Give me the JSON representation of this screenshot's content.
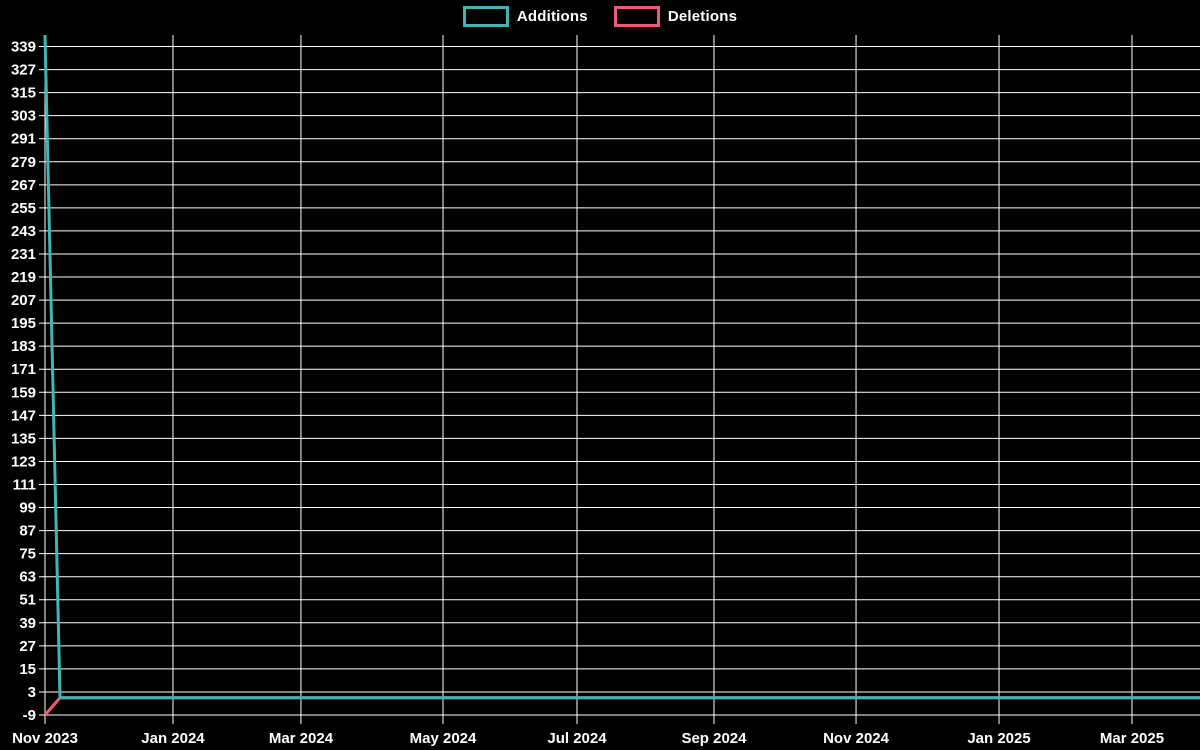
{
  "page": {
    "background": "#000000",
    "grid_color": "#ffffff",
    "text_color": "#ffffff"
  },
  "chart_data": {
    "type": "line",
    "title": "",
    "legend_position": "top-center",
    "grid": true,
    "series": [
      {
        "name": "Additions",
        "color": "#3fb6b6",
        "points": [
          {
            "x": 0.0,
            "y": 345
          },
          {
            "x": 0.013,
            "y": 0
          },
          {
            "x": 1.0,
            "y": 0
          }
        ]
      },
      {
        "name": "Deletions",
        "color": "#ef5b72",
        "points": [
          {
            "x": 0.0,
            "y": -9
          },
          {
            "x": 0.013,
            "y": 0
          },
          {
            "x": 1.0,
            "y": 0
          }
        ]
      }
    ],
    "x_axis": {
      "type": "time",
      "ticks": [
        {
          "label": "Nov 2023",
          "pos": 0.0
        },
        {
          "label": "Jan 2024",
          "pos": 0.1108
        },
        {
          "label": "Mar 2024",
          "pos": 0.2216
        },
        {
          "label": "May 2024",
          "pos": 0.3446
        },
        {
          "label": "Jul 2024",
          "pos": 0.4606
        },
        {
          "label": "Sep 2024",
          "pos": 0.5792
        },
        {
          "label": "Nov 2024",
          "pos": 0.7022
        },
        {
          "label": "Jan 2025",
          "pos": 0.826
        },
        {
          "label": "Mar 2025",
          "pos": 0.9411
        }
      ]
    },
    "y_axis": {
      "min": -9,
      "max": 345,
      "tick_step": 12,
      "labels": [
        "339",
        "327",
        "315",
        "303",
        "291",
        "279",
        "267",
        "255",
        "243",
        "231",
        "219",
        "207",
        "195",
        "183",
        "171",
        "159",
        "147",
        "135",
        "123",
        "111",
        "99",
        "87",
        "75",
        "63",
        "51",
        "39",
        "27",
        "15",
        "3",
        "-9"
      ]
    }
  }
}
